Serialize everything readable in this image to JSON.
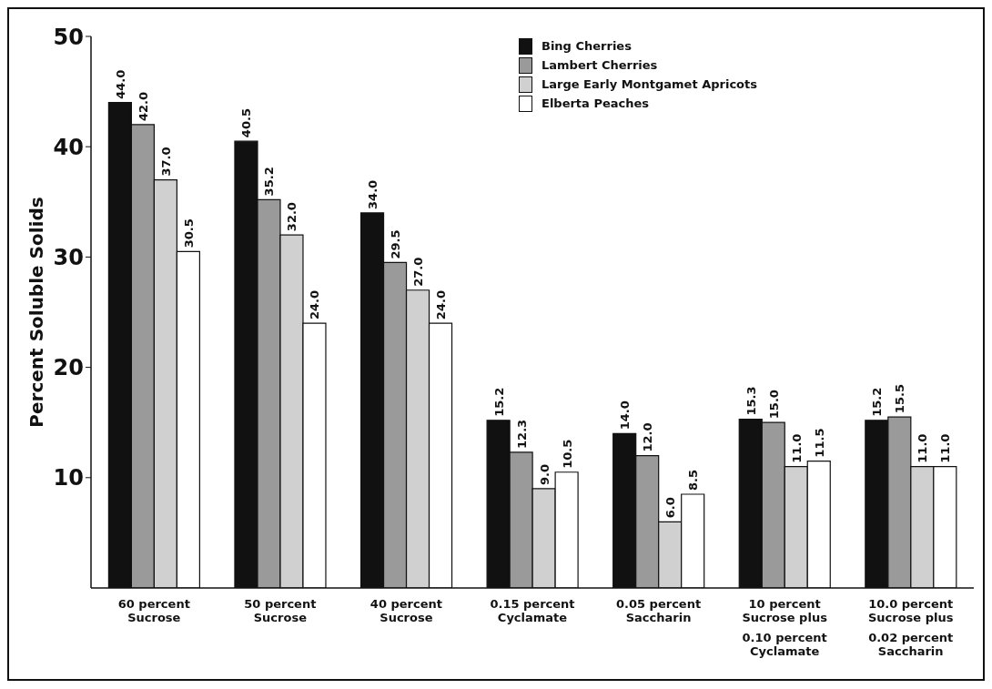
{
  "chart_data": {
    "type": "bar",
    "ylabel": "Percent Soluble Solids",
    "categories": [
      "60 percent Sucrose",
      "50 percent Sucrose",
      "40 percent Sucrose",
      "0.15 percent Cyclamate",
      "0.05 percent Saccharin",
      "10 percent Sucrose plus 0.10 percent Cyclamate",
      "10.0 percent Sucrose plus 0.02 percent Saccharin"
    ],
    "series": [
      {
        "name": "Bing Cherries",
        "color": "#111111",
        "values": [
          44.0,
          40.5,
          34.0,
          15.2,
          14.0,
          15.3,
          15.2
        ],
        "value_labels": [
          "44.0",
          "40.5",
          "34.0",
          "15.2",
          "14.0",
          "15.3",
          "15.2"
        ]
      },
      {
        "name": "Lambert Cherries",
        "color": "#9a9a9a",
        "values": [
          42.0,
          35.2,
          29.5,
          12.3,
          12.0,
          15.0,
          15.5
        ],
        "value_labels": [
          "42.0",
          "35.2",
          "29.5",
          "12.3",
          "12.0",
          "15.0",
          "15.5"
        ]
      },
      {
        "name": "Large Early Montgamet Apricots",
        "color": "#d0d0d0",
        "values": [
          37.0,
          32.0,
          27.0,
          9.0,
          6.0,
          11.0,
          11.0
        ],
        "value_labels": [
          "37.0",
          "32.0",
          "27.0",
          "9.0",
          "6.0",
          "11.0",
          "11.0"
        ]
      },
      {
        "name": "Elberta Peaches",
        "color": "#ffffff",
        "values": [
          30.5,
          24.0,
          24.0,
          10.5,
          8.5,
          11.5,
          11.0
        ],
        "value_labels": [
          "30.5",
          "24.0",
          "24.0",
          "10.5",
          "8.5",
          "11.5",
          "11.0"
        ]
      }
    ],
    "ylim": [
      0,
      50
    ],
    "yticks": [
      10,
      20,
      30,
      40,
      50
    ],
    "grid": false,
    "legend": "top right"
  }
}
